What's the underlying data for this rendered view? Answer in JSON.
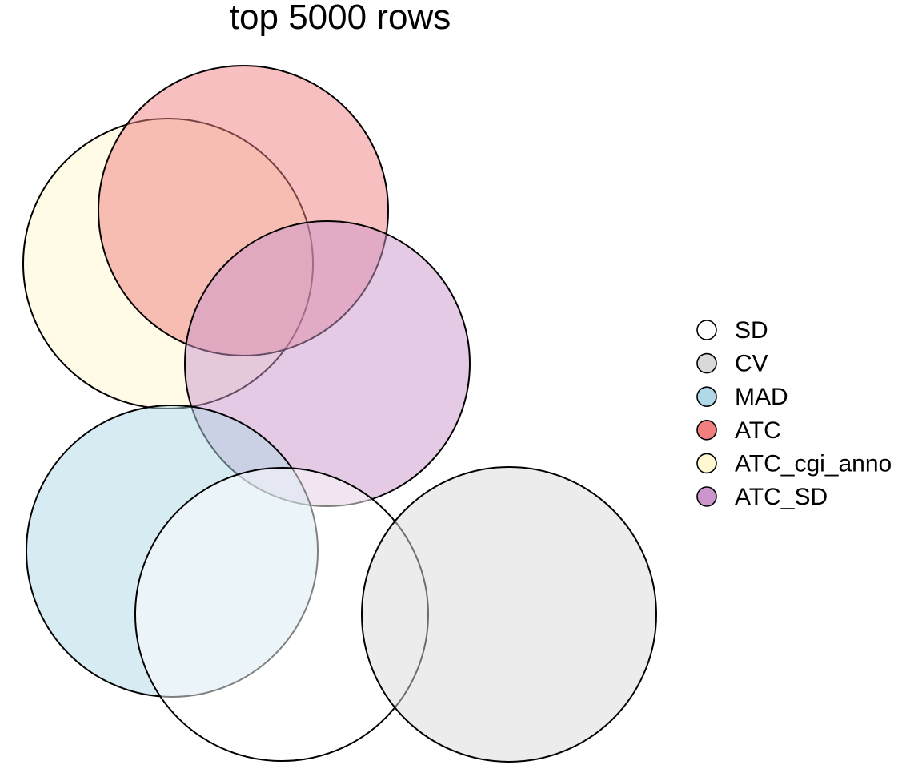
{
  "title": "top 5000 rows",
  "sets": [
    {
      "name": "SD",
      "color": "#FFFFFF"
    },
    {
      "name": "CV",
      "color": "#D9D9D9"
    },
    {
      "name": "MAD",
      "color": "#B0D8E6"
    },
    {
      "name": "ATC",
      "color": "#F08080"
    },
    {
      "name": "ATC_cgi_anno",
      "color": "#FFF8D0"
    },
    {
      "name": "ATC_SD",
      "color": "#CC95CC"
    }
  ],
  "legend": {
    "position": "right"
  }
}
